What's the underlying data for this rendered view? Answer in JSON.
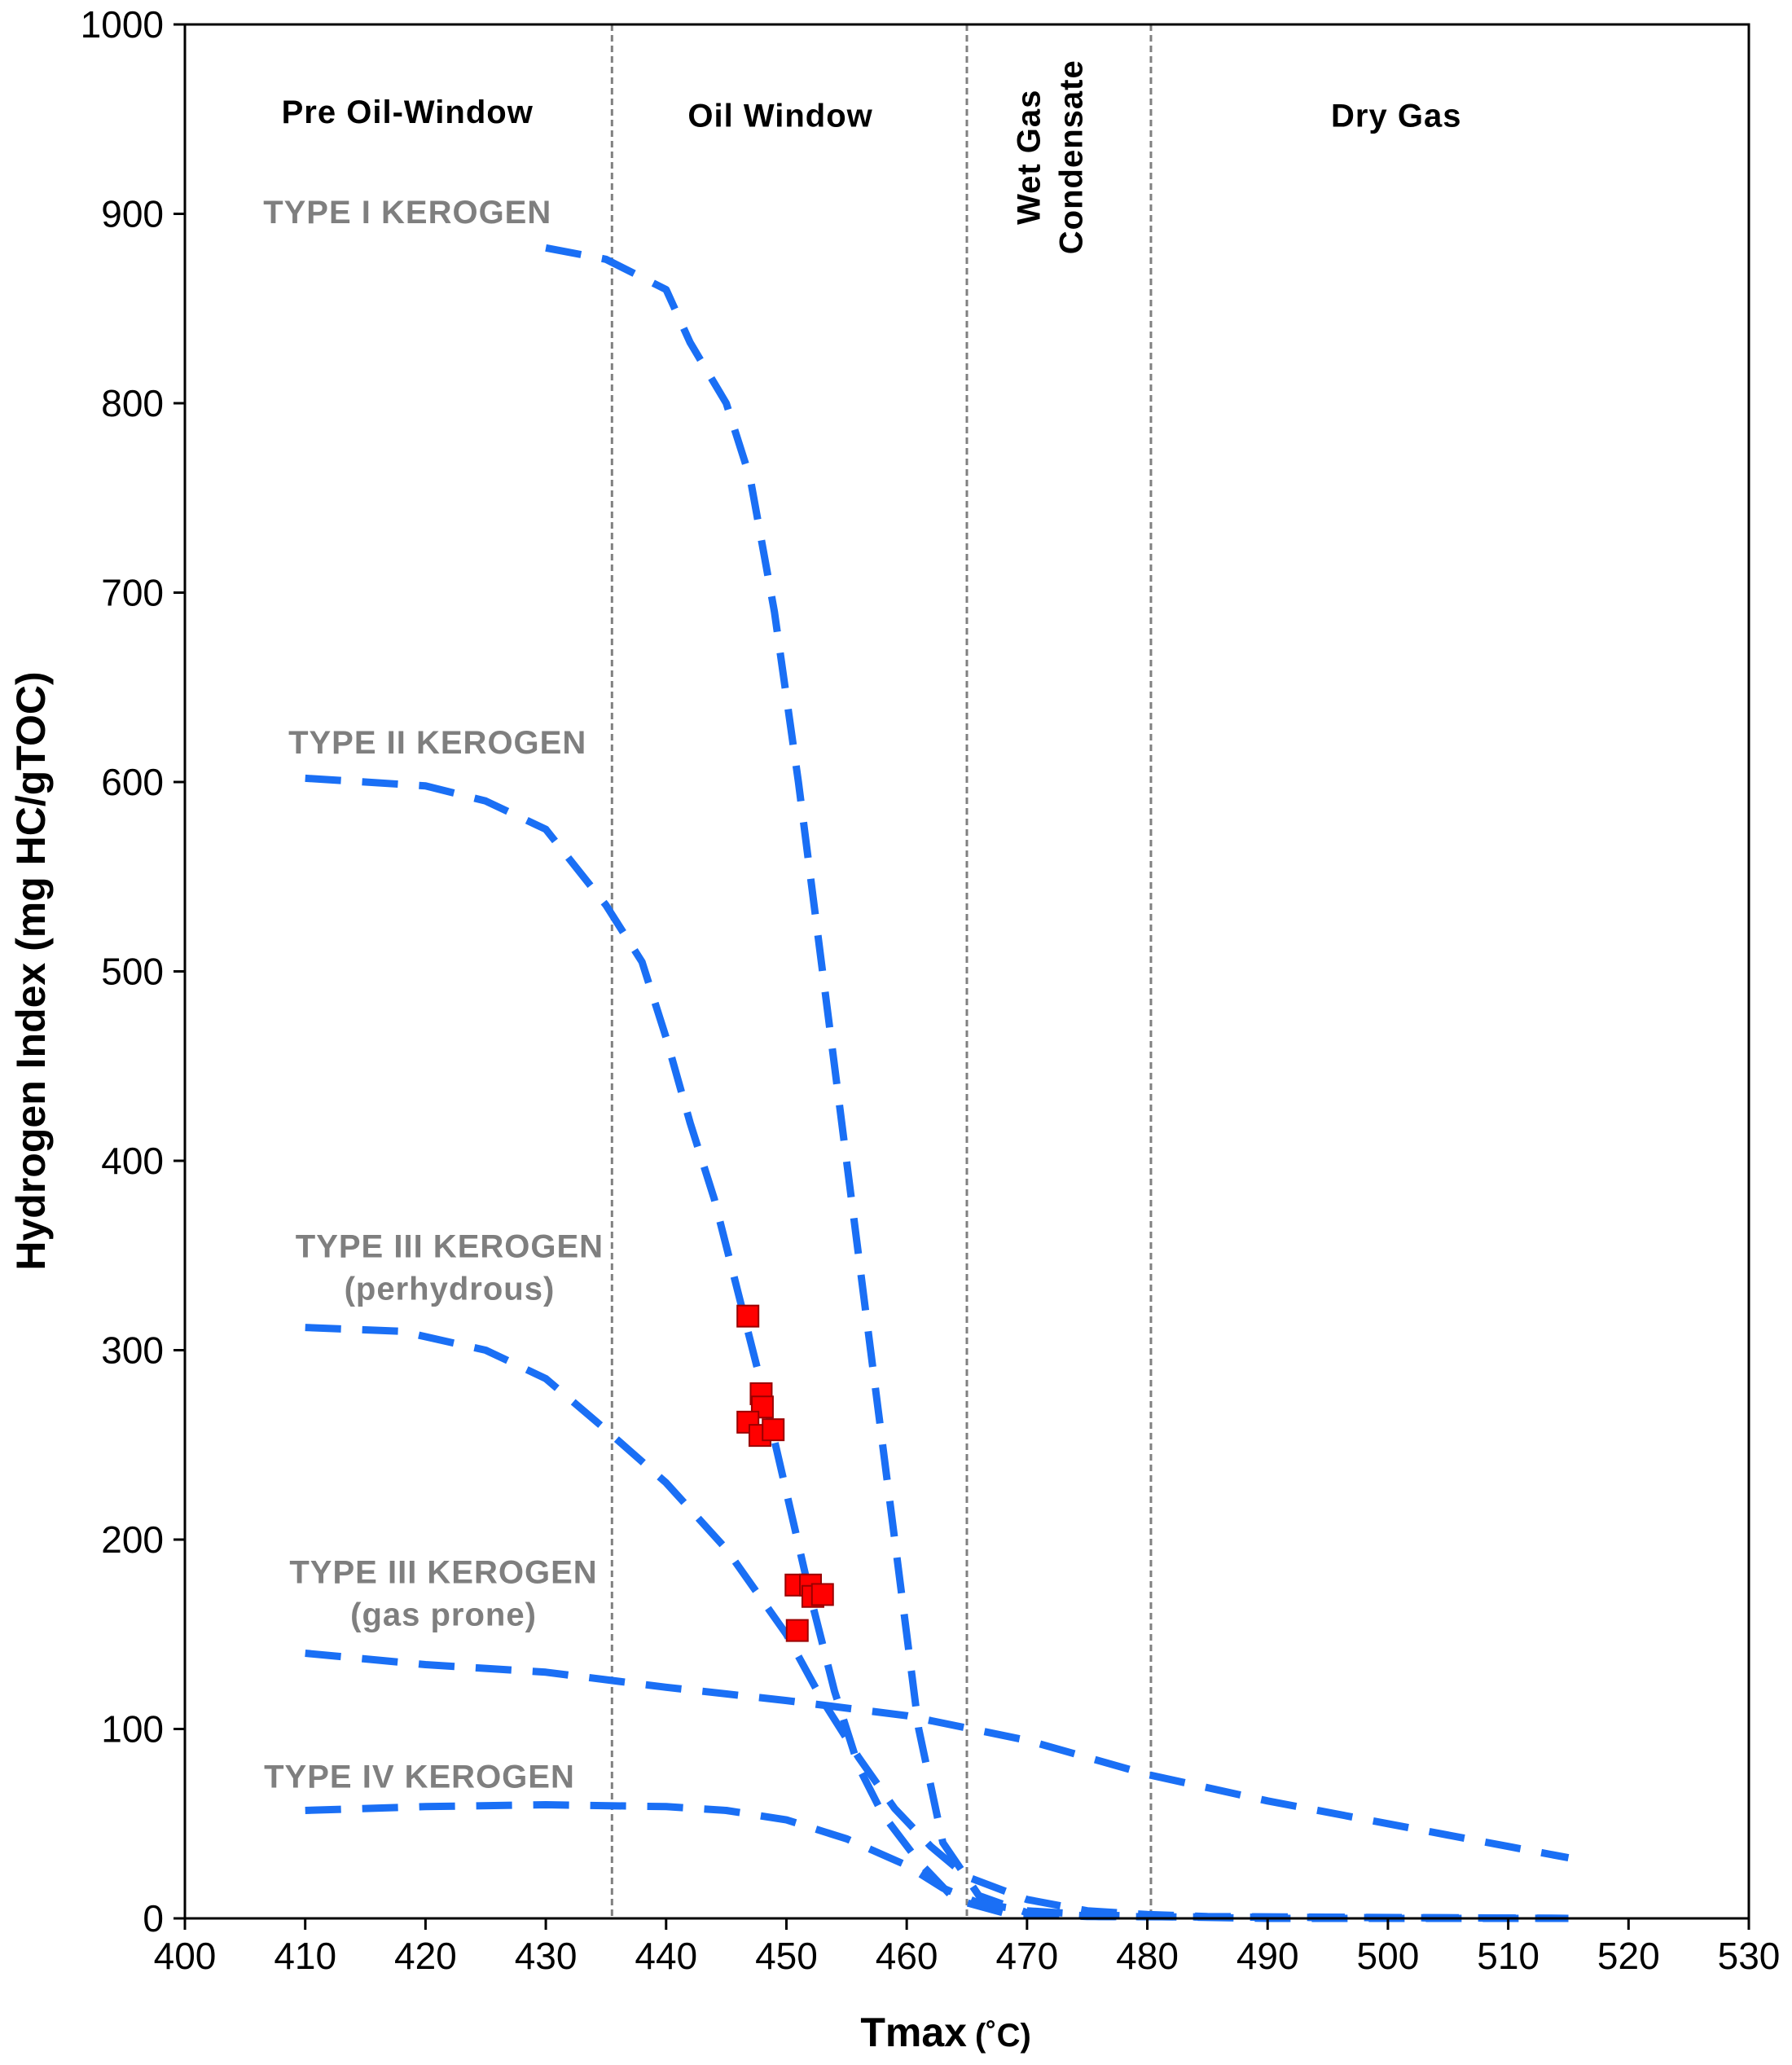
{
  "chart_data": {
    "type": "scatter",
    "xlabel": "Tmax",
    "xunit": "(˚C)",
    "ylabel": "Hydrogen Index (mg HC/gTOC)",
    "xlim": [
      400,
      530
    ],
    "ylim": [
      0,
      1000
    ],
    "xticks": [
      "400",
      "410",
      "420",
      "430",
      "440",
      "450",
      "460",
      "470",
      "480",
      "490",
      "500",
      "510",
      "520",
      "530"
    ],
    "yticks": [
      "0",
      "100",
      "200",
      "300",
      "400",
      "500",
      "600",
      "700",
      "800",
      "900",
      "1000"
    ],
    "boundaries": [
      435.5,
      465,
      480.3
    ],
    "zones": [
      {
        "name": "pre-oil-window",
        "lines": [
          "Pre Oil-Window"
        ],
        "x": 418.5,
        "y": 948,
        "rotated": false
      },
      {
        "name": "oil-window",
        "lines": [
          "Oil Window"
        ],
        "x": 449.5,
        "y": 946,
        "rotated": false
      },
      {
        "name": "wet-gas-condensate",
        "lines": [
          "Wet Gas",
          "Condensate"
        ],
        "x": 472.7,
        "y": 930,
        "rotated": true
      },
      {
        "name": "dry-gas",
        "lines": [
          "Dry Gas"
        ],
        "x": 500.7,
        "y": 946,
        "rotated": false
      }
    ],
    "kerogen_labels": [
      {
        "name": "type-i",
        "lines": [
          "TYPE  I KEROGEN"
        ],
        "x": 418.5,
        "y": 895
      },
      {
        "name": "type-ii",
        "lines": [
          "TYPE  II KEROGEN"
        ],
        "x": 421,
        "y": 615
      },
      {
        "name": "type-iii-perhydrous",
        "lines": [
          "TYPE  III KEROGEN",
          "(perhydrous)"
        ],
        "x": 422,
        "y": 349
      },
      {
        "name": "type-iii-gas-prone",
        "lines": [
          "TYPE  III KEROGEN",
          "(gas prone)"
        ],
        "x": 421.5,
        "y": 177
      },
      {
        "name": "type-iv",
        "lines": [
          "TYPE  IV KEROGEN"
        ],
        "x": 419.5,
        "y": 69
      }
    ],
    "curves": [
      {
        "name": "type-i-curve",
        "points": [
          [
            430,
            882
          ],
          [
            435,
            876
          ],
          [
            440,
            860
          ],
          [
            442,
            832
          ],
          [
            445,
            800
          ],
          [
            447,
            760
          ],
          [
            449,
            690
          ],
          [
            451,
            600
          ],
          [
            453,
            500
          ],
          [
            455,
            400
          ],
          [
            457,
            300
          ],
          [
            459,
            200
          ],
          [
            461,
            100
          ],
          [
            463,
            40
          ],
          [
            466,
            12
          ],
          [
            470,
            3
          ],
          [
            476,
            1
          ],
          [
            515,
            0
          ]
        ]
      },
      {
        "name": "type-ii-curve",
        "points": [
          [
            410,
            602
          ],
          [
            420,
            598
          ],
          [
            425,
            590
          ],
          [
            430,
            575
          ],
          [
            435,
            535
          ],
          [
            438,
            505
          ],
          [
            440,
            465
          ],
          [
            442,
            420
          ],
          [
            444,
            380
          ],
          [
            446,
            330
          ],
          [
            448,
            280
          ],
          [
            450,
            225
          ],
          [
            452,
            170
          ],
          [
            454,
            120
          ],
          [
            456,
            80
          ],
          [
            458,
            55
          ],
          [
            461,
            30
          ],
          [
            464,
            10
          ],
          [
            468,
            3
          ],
          [
            475,
            1
          ],
          [
            515,
            0
          ]
        ]
      },
      {
        "name": "type-iii-perhydrous-curve",
        "points": [
          [
            410,
            312
          ],
          [
            418,
            310
          ],
          [
            425,
            300
          ],
          [
            430,
            285
          ],
          [
            435,
            258
          ],
          [
            440,
            230
          ],
          [
            445,
            195
          ],
          [
            450,
            150
          ],
          [
            453,
            115
          ],
          [
            456,
            85
          ],
          [
            459,
            58
          ],
          [
            462,
            38
          ],
          [
            465,
            22
          ],
          [
            470,
            10
          ],
          [
            475,
            4
          ],
          [
            480,
            2
          ],
          [
            485,
            1
          ],
          [
            515,
            0
          ]
        ]
      },
      {
        "name": "type-iii-gas-prone-curve",
        "points": [
          [
            410,
            140
          ],
          [
            420,
            134
          ],
          [
            430,
            130
          ],
          [
            440,
            122
          ],
          [
            450,
            115
          ],
          [
            460,
            107
          ],
          [
            470,
            94
          ],
          [
            480,
            76
          ],
          [
            490,
            62
          ],
          [
            500,
            50
          ],
          [
            510,
            38
          ],
          [
            515,
            32
          ]
        ]
      },
      {
        "name": "type-iv-curve",
        "points": [
          [
            410,
            57
          ],
          [
            420,
            59
          ],
          [
            430,
            60
          ],
          [
            440,
            59
          ],
          [
            445,
            57
          ],
          [
            450,
            52
          ],
          [
            455,
            42
          ],
          [
            460,
            28
          ],
          [
            463,
            16
          ],
          [
            466,
            8
          ],
          [
            470,
            4
          ],
          [
            475,
            2
          ],
          [
            480,
            1
          ],
          [
            490,
            0
          ],
          [
            515,
            0
          ]
        ]
      }
    ],
    "samples": [
      {
        "x": 446.8,
        "y": 318
      },
      {
        "x": 447.9,
        "y": 277
      },
      {
        "x": 448.0,
        "y": 270
      },
      {
        "x": 446.8,
        "y": 262
      },
      {
        "x": 447.8,
        "y": 255
      },
      {
        "x": 448.9,
        "y": 258
      },
      {
        "x": 450.8,
        "y": 176
      },
      {
        "x": 452.0,
        "y": 176
      },
      {
        "x": 452.2,
        "y": 170
      },
      {
        "x": 453.0,
        "y": 171
      },
      {
        "x": 450.9,
        "y": 152
      }
    ]
  },
  "colors": {
    "curve": "#1a6ff5",
    "sample_fill": "#ff0000",
    "sample_stroke": "#990000",
    "boundary": "#808080",
    "kerogen_label": "#7f7f7f",
    "axis": "#000000"
  }
}
